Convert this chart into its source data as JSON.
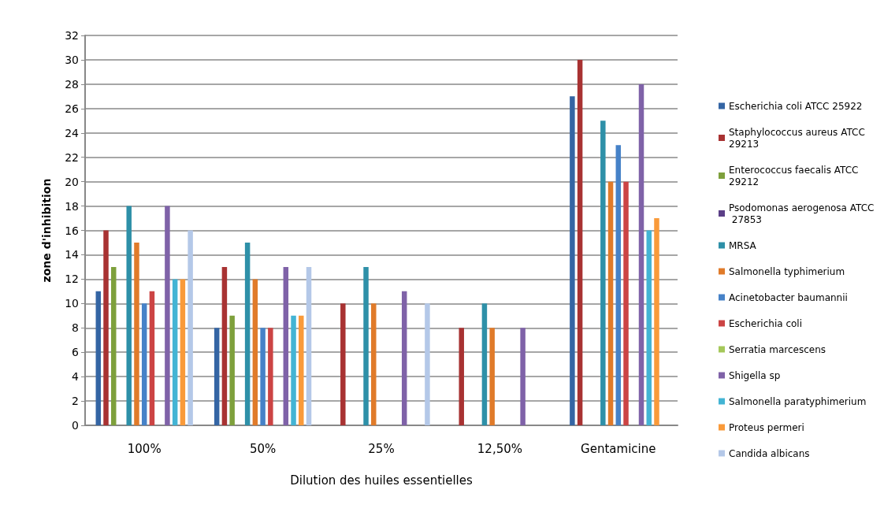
{
  "chart_data": {
    "type": "bar",
    "xlabel": "Dilution des huiles essentielles",
    "ylabel": "zone d'inhibition",
    "categories": [
      "100%",
      "50%",
      "25%",
      "12,50%",
      "Gentamicine"
    ],
    "ylim": [
      0,
      32
    ],
    "yticks": [
      0,
      2,
      4,
      6,
      8,
      10,
      12,
      14,
      16,
      18,
      20,
      22,
      24,
      26,
      28,
      30,
      32
    ],
    "grid": "y",
    "legend": "right",
    "series": [
      {
        "name": "Escherichia coli ATCC 25922",
        "color": "#3465a4",
        "values": [
          11,
          8,
          null,
          null,
          27
        ]
      },
      {
        "name": "Staphylococcus aureus ATCC 29213",
        "color": "#a83232",
        "values": [
          16,
          13,
          10,
          8,
          30
        ]
      },
      {
        "name": "Enterococcus faecalis ATCC 29212",
        "color": "#7ea03c",
        "values": [
          13,
          9,
          null,
          null,
          null
        ]
      },
      {
        "name": "Psodomonas aerogenosa ATCC 27853",
        "color": "#5b3f87",
        "values": [
          null,
          null,
          null,
          null,
          null
        ]
      },
      {
        "name": "MRSA",
        "color": "#2e90a8",
        "values": [
          18,
          15,
          13,
          10,
          25
        ]
      },
      {
        "name": "Salmonella typhimerium",
        "color": "#e07b2a",
        "values": [
          15,
          12,
          10,
          8,
          20
        ]
      },
      {
        "name": "Acinetobacter baumannii",
        "color": "#4682c8",
        "values": [
          10,
          8,
          null,
          null,
          23
        ]
      },
      {
        "name": "Escherichia coli",
        "color": "#cc4444",
        "values": [
          11,
          8,
          null,
          null,
          20
        ]
      },
      {
        "name": "Serratia marcescens",
        "color": "#a5c85a",
        "values": [
          null,
          null,
          null,
          null,
          null
        ]
      },
      {
        "name": "Shigella sp",
        "color": "#7f62a8",
        "values": [
          18,
          13,
          11,
          8,
          28
        ]
      },
      {
        "name": "Salmonella paratyphimerium",
        "color": "#43b4d4",
        "values": [
          12,
          9,
          null,
          null,
          16
        ]
      },
      {
        "name": "Proteus permeri",
        "color": "#f99a3a",
        "values": [
          12,
          9,
          null,
          null,
          17
        ]
      },
      {
        "name": "Candida albicans",
        "color": "#b4c8e8",
        "values": [
          16,
          13,
          10,
          null,
          null
        ]
      }
    ]
  }
}
